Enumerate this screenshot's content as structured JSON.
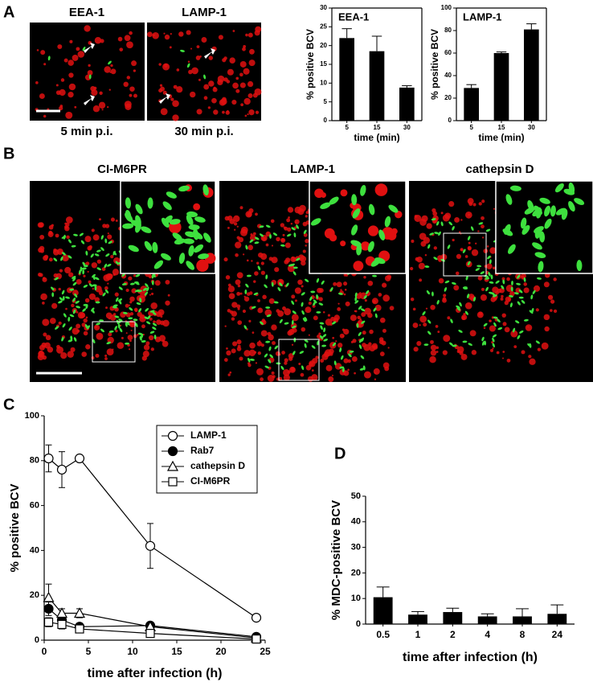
{
  "panel_labels": [
    "A",
    "B",
    "C",
    "D"
  ],
  "a_images": [
    {
      "title": "EEA-1",
      "caption": "5 min p.i."
    },
    {
      "title": "LAMP-1",
      "caption": "30 min p.i."
    }
  ],
  "b_images": [
    {
      "title": "CI-M6PR"
    },
    {
      "title": "LAMP-1"
    },
    {
      "title": "cathepsin D"
    }
  ],
  "chart_data": [
    {
      "type": "bar",
      "title": "EEA-1",
      "categories": [
        "5",
        "15",
        "30"
      ],
      "values": [
        22,
        18.5,
        8.8
      ],
      "errors": [
        2.5,
        4,
        0.5
      ],
      "color": "#000000",
      "ylim": [
        0,
        30
      ],
      "yticks": [
        0,
        5,
        10,
        15,
        20,
        25,
        30
      ],
      "ylabel": "% positive BCV",
      "xlabel": "time (min)",
      "frame": true
    },
    {
      "type": "bar",
      "title": "LAMP-1",
      "categories": [
        "5",
        "15",
        "30"
      ],
      "values": [
        29,
        60,
        81
      ],
      "errors": [
        3,
        1,
        5
      ],
      "color": "#000000",
      "ylim": [
        0,
        100
      ],
      "yticks": [
        0,
        20,
        40,
        60,
        80,
        100
      ],
      "ylabel": "% positive BCV",
      "xlabel": "time (min)",
      "frame": true
    },
    {
      "type": "line",
      "x": [
        0.5,
        2,
        4,
        12,
        24
      ],
      "xlim": [
        0,
        25
      ],
      "xticks": [
        0,
        5,
        10,
        15,
        20,
        25
      ],
      "ylim": [
        0,
        100
      ],
      "yticks": [
        0,
        20,
        40,
        60,
        80,
        100
      ],
      "ylabel": "% positive BCV",
      "xlabel": "time after infection (h)",
      "legend": "upper right",
      "series": [
        {
          "name": "LAMP-1",
          "color": "#000000",
          "marker": "open-circle",
          "values": [
            81,
            76,
            81,
            42,
            10
          ],
          "errors": [
            6,
            8,
            1,
            10,
            1
          ]
        },
        {
          "name": "Rab7",
          "color": "#000000",
          "marker": "filled-circle",
          "values": [
            14,
            9,
            6,
            6.5,
            1.5
          ],
          "errors": [
            3,
            2,
            1,
            1,
            0.5
          ]
        },
        {
          "name": "cathepsin D",
          "color": "#000000",
          "marker": "open-triangle",
          "values": [
            19,
            12,
            12,
            6,
            1
          ],
          "errors": [
            6,
            2,
            2,
            2,
            0.5
          ]
        },
        {
          "name": "CI-M6PR",
          "color": "#000000",
          "marker": "open-square",
          "values": [
            8,
            7,
            5,
            3,
            0.5
          ],
          "errors": [
            2,
            2,
            1,
            1,
            0.5
          ]
        }
      ]
    },
    {
      "type": "bar",
      "categories": [
        "0.5",
        "1",
        "2",
        "4",
        "8",
        "24"
      ],
      "values": [
        10.5,
        3.7,
        4.7,
        3,
        3,
        4
      ],
      "errors": [
        4,
        1.2,
        1.5,
        1,
        3,
        3.5
      ],
      "color": "#000000",
      "ylim": [
        0,
        50
      ],
      "yticks": [
        0,
        10,
        20,
        30,
        40,
        50
      ],
      "ylabel": "% MDC-positive BCV",
      "xlabel": "time after infection (h)",
      "frame": false
    }
  ]
}
